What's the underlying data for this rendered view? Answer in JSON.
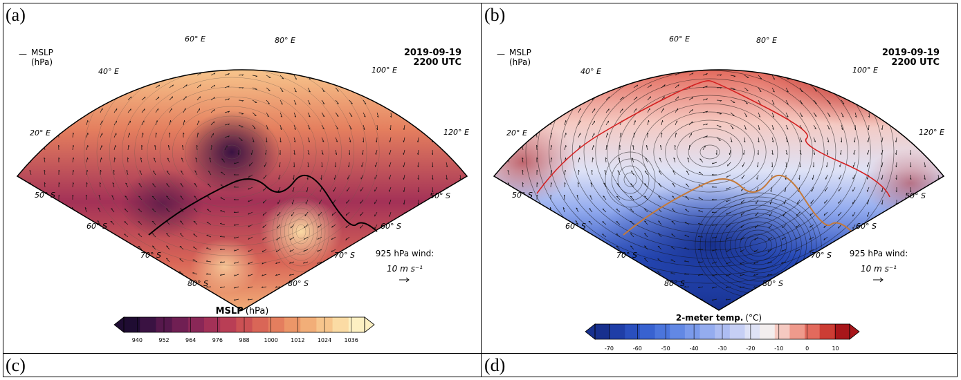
{
  "panels": [
    {
      "label": "(a)",
      "legend_symbol": "—",
      "legend_line1": "MSLP",
      "legend_line2": "(hPa)",
      "date": "2019-09-19",
      "time": "2200 UTC",
      "lon_labels": [
        "20° E",
        "40° E",
        "60° E",
        "80° E",
        "100° E",
        "120° E"
      ],
      "lat_labels": [
        "50° S",
        "60° S",
        "70° S",
        "80° S"
      ],
      "wind_title": "925 hPa wind:",
      "wind_scale": "10 m s⁻¹",
      "colorbar_title_bold": "MSLP",
      "colorbar_title_unit": "(hPa)",
      "colorbar_ticks": [
        "940",
        "952",
        "964",
        "976",
        "988",
        "1000",
        "1012",
        "1024",
        "1036"
      ],
      "colors": [
        "#1f0c32",
        "#3a1242",
        "#56184c",
        "#701f53",
        "#8a2757",
        "#a33157",
        "#b93e55",
        "#cb5154",
        "#d96657",
        "#e47e5e",
        "#ec9668",
        "#f2ae78",
        "#f7c58c",
        "#fbdba4",
        "#fdf0c2"
      ]
    },
    {
      "label": "(b)",
      "legend_symbol": "—",
      "legend_line1": "MSLP",
      "legend_line2": "(hPa)",
      "date": "2019-09-19",
      "time": "2200 UTC",
      "lon_labels": [
        "20° E",
        "40° E",
        "60° E",
        "80° E",
        "100° E",
        "120° E"
      ],
      "lat_labels": [
        "50° S",
        "60° S",
        "70° S",
        "80° S"
      ],
      "wind_title": "925 hPa wind:",
      "wind_scale": "10 m s⁻¹",
      "colorbar_title_bold": "2-meter temp.",
      "colorbar_title_unit": "(°C)",
      "colorbar_ticks": [
        "-70",
        "-60",
        "-50",
        "-40",
        "-30",
        "-20",
        "-10",
        "0",
        "10"
      ],
      "colors": [
        "#17308e",
        "#1f3ea7",
        "#2a4fbe",
        "#3862d0",
        "#4b75dc",
        "#6288e4",
        "#7a9aeb",
        "#94acef",
        "#adbdf2",
        "#c6cff5",
        "#dee2f6",
        "#f3eeee",
        "#f5c9c1",
        "#ef9a8c",
        "#e36a5d",
        "#cc3d34",
        "#a8161a"
      ]
    }
  ],
  "bottom_labels": [
    "(c)",
    "(d)"
  ]
}
